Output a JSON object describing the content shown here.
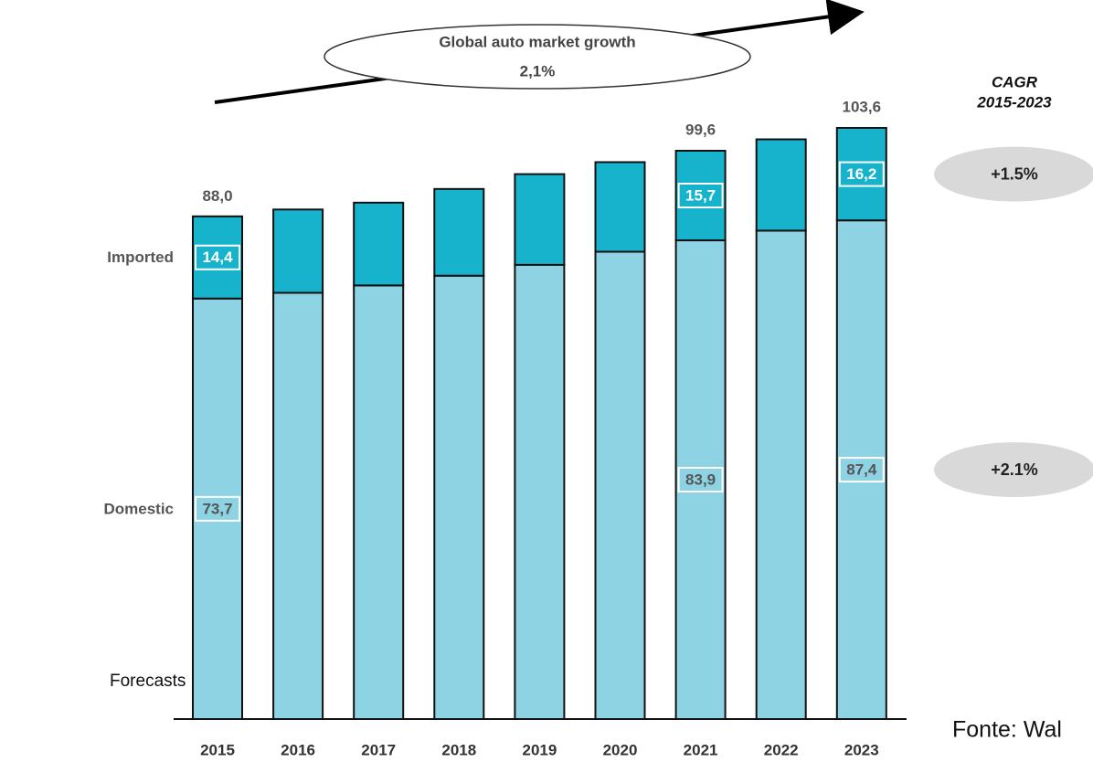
{
  "chart_data": {
    "type": "stacked_bar",
    "annotation": "Global auto market growth",
    "annotation_value": "2,1%",
    "cagr_title": "CAGR",
    "cagr_period": "2015-2023",
    "categories": [
      "2015",
      "2016",
      "2017",
      "2018",
      "2019",
      "2020",
      "2021",
      "2022",
      "2023"
    ],
    "series": [
      {
        "name": "Domestic",
        "color": "#8dd3e4",
        "values": [
          73.7,
          74.7,
          76.0,
          77.7,
          79.6,
          81.9,
          83.9,
          85.6,
          87.4
        ],
        "value_labels": [
          "73,7",
          null,
          null,
          null,
          null,
          null,
          "83,9",
          null,
          "87,4"
        ],
        "cagr": "+2.1%"
      },
      {
        "name": "Imported",
        "color": "#17b3cc",
        "values": [
          14.4,
          14.6,
          14.5,
          15.2,
          15.9,
          15.7,
          15.7,
          16.0,
          16.2
        ],
        "value_labels": [
          "14,4",
          null,
          null,
          null,
          null,
          null,
          "15,7",
          null,
          "16,2"
        ],
        "cagr": "+1.5%"
      }
    ],
    "totals": [
      88.0,
      null,
      null,
      null,
      null,
      null,
      99.6,
      null,
      103.6
    ],
    "total_labels": [
      "88,0",
      null,
      null,
      null,
      null,
      null,
      "99,6",
      null,
      "103,6"
    ],
    "note": "Forecasts",
    "source": "Fonte: Wal"
  }
}
